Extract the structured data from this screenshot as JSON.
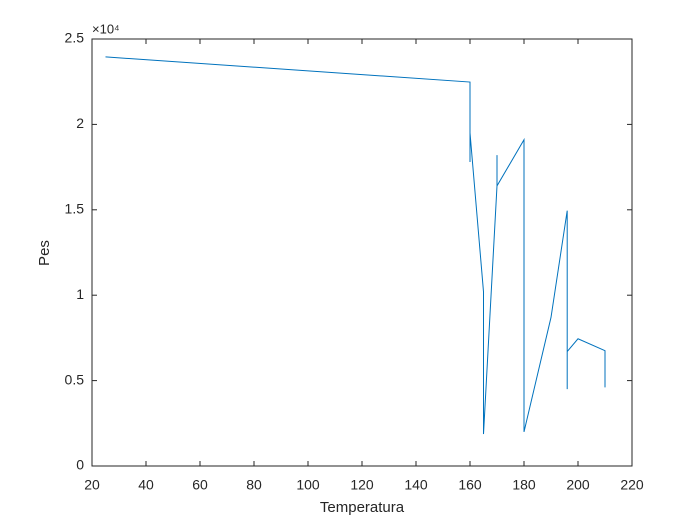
{
  "chart_data": {
    "type": "line",
    "xlabel": "Temperatura",
    "ylabel": "Pes",
    "y_exponent_label": "×10⁴",
    "x": [
      25,
      160,
      160,
      160,
      165,
      165,
      170,
      170,
      170,
      180,
      180,
      190,
      196,
      196,
      196,
      200,
      210,
      210
    ],
    "series": [
      {
        "color": "#0072bd",
        "values": [
          23950,
          22480,
          17800,
          19500,
          10200,
          1870,
          16400,
          18200,
          16400,
          19100,
          2000,
          8700,
          14950,
          4500,
          6700,
          7450,
          6750,
          4600
        ]
      }
    ],
    "xlim": [
      20,
      220
    ],
    "xticks": [
      20,
      40,
      60,
      80,
      100,
      120,
      140,
      160,
      180,
      200,
      220
    ],
    "ylim": [
      0,
      25000
    ],
    "yticks": [
      {
        "value": 0,
        "label": "0"
      },
      {
        "value": 5000,
        "label": "0.5"
      },
      {
        "value": 10000,
        "label": "1"
      },
      {
        "value": 15000,
        "label": "1.5"
      },
      {
        "value": 20000,
        "label": "2"
      },
      {
        "value": 25000,
        "label": "2.5"
      }
    ],
    "grid": false
  }
}
